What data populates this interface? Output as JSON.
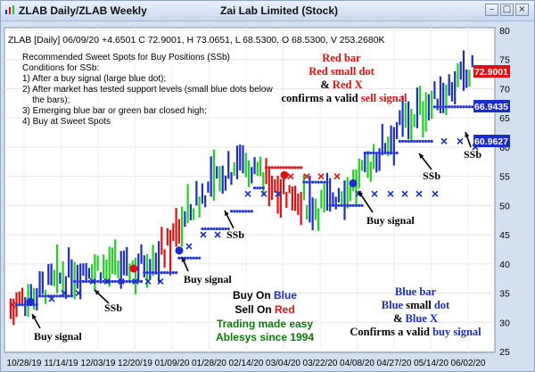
{
  "window": {
    "tab_label": "ZLAB Daily/ZLAB Weekly",
    "title": "Zai Lab Limited (Stock)",
    "buttons": [
      "minimize",
      "restore",
      "close"
    ]
  },
  "header": {
    "quote_line": "ZLAB [Daily] 06/09/20 +4.6501 C 72.9001, H 73.0651, L 68.5300, O 68.5300, V 253.2680K"
  },
  "instructions": [
    "Recommended Sweet Spots for Buy Positions (SSb)",
    "Conditions for SSb:",
    "1) After a buy signal (large blue dot);",
    "2) After market has tested support levels (small blue dots below",
    "    the bars);",
    "3) Emerging blue bar or green bar closed high;",
    "4) Buy at Sweet Spots"
  ],
  "annotations": {
    "sell_block": {
      "line1": "Red bar",
      "line2a": "Red small dot",
      "line3a": "& ",
      "line3b": "Red X",
      "line4a": "confirms a valid ",
      "line4b": "sell signal"
    },
    "buy_block": {
      "line1": "Blue bar",
      "line2a": "Blue",
      "line2b": " small ",
      "line2c": "dot",
      "line3a": "& ",
      "line3b": "Blue X",
      "line4a": "Confirms a valid ",
      "line4b": "buy signal"
    },
    "buy_on": "Buy On ",
    "buy_on_word": "Blue",
    "sell_on": "Sell On ",
    "sell_on_word": "Red",
    "slogan1": "Trading made easy",
    "slogan2": "Ablesys since 1994",
    "buy_signals": [
      "Buy signal",
      "Buy signal",
      "Buy signal"
    ],
    "ssb_labels": [
      "SSb",
      "SSb",
      "SSb",
      "SSb"
    ]
  },
  "price_flags": {
    "last": "72.9001",
    "stop_upper": "66.9435",
    "stop_lower": "60.9627"
  },
  "colors": {
    "red": "#e01010",
    "blue": "#1a2ccc",
    "green": "#1fd11f",
    "dotblue": "#2233dd",
    "slogan_green": "#0a7a0a"
  },
  "chart_data": {
    "type": "bar",
    "title": "Zai Lab Limited (Stock)",
    "series_name": "ZLAB [Daily]",
    "y_axis": {
      "min": 25,
      "max": 80,
      "ticks": [
        25,
        30,
        35,
        40,
        45,
        50,
        55,
        60,
        65,
        70,
        75,
        80
      ]
    },
    "x_axis_labels": [
      "10/28/19",
      "11/14/19",
      "12/03/19",
      "12/20/19",
      "01/09/20",
      "01/28/20",
      "02/14/20",
      "03/04/20",
      "03/22/20",
      "04/08/20",
      "04/27/20",
      "05/14/20",
      "06/02/20"
    ],
    "close_points": [
      {
        "x": "10/28/19",
        "y": 32.5
      },
      {
        "x": "11/14/19",
        "y": 36.5
      },
      {
        "x": "12/03/19",
        "y": 39.5
      },
      {
        "x": "12/20/19",
        "y": 39.0
      },
      {
        "x": "01/09/20",
        "y": 42.0
      },
      {
        "x": "01/28/20",
        "y": 52.0
      },
      {
        "x": "02/14/20",
        "y": 58.0
      },
      {
        "x": "03/04/20",
        "y": 53.0
      },
      {
        "x": "03/22/20",
        "y": 50.0
      },
      {
        "x": "04/08/20",
        "y": 54.0
      },
      {
        "x": "04/27/20",
        "y": 63.0
      },
      {
        "x": "05/14/20",
        "y": 68.0
      },
      {
        "x": "06/02/20",
        "y": 72.9
      }
    ],
    "last_close": 72.9001,
    "stops": [
      66.9435,
      60.9627
    ]
  }
}
